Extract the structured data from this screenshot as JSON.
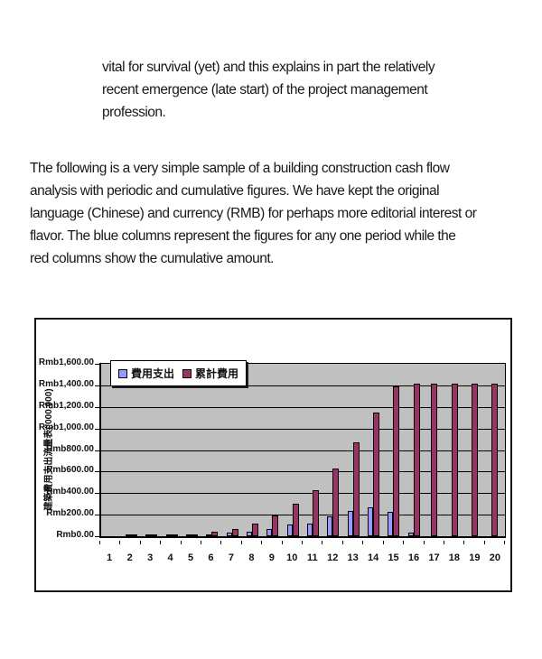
{
  "document": {
    "paragraph_indented": {
      "lines": [
        "vital for survival (yet) and this explains in part the relatively",
        "recent emergence (late start) of the project management",
        "profession."
      ]
    },
    "paragraph_main": {
      "lines": [
        "The following is a very simple sample of a building construction cash flow",
        "analysis with periodic and cumulative figures. We have kept the original",
        "language (Chinese) and currency (RMB) for perhaps more editorial interest or",
        "flavor. The blue columns represent the figures for any one period while the",
        "red columns show the cumulative amount."
      ]
    }
  },
  "chart_data": {
    "type": "bar",
    "title": "",
    "ylabel": "建築費用支出流量表('000,000)",
    "xlabel": "",
    "categories": [
      "1",
      "2",
      "3",
      "4",
      "5",
      "6",
      "7",
      "8",
      "9",
      "10",
      "11",
      "12",
      "13",
      "14",
      "15",
      "16",
      "17",
      "18",
      "19",
      "20"
    ],
    "series": [
      {
        "name": "費用支出",
        "color": "#9999FF",
        "values": [
          0,
          2,
          4,
          6,
          5,
          14,
          30,
          45,
          65,
          110,
          115,
          185,
          235,
          270,
          225,
          30,
          0,
          0,
          0,
          0
        ]
      },
      {
        "name": "累計費用",
        "color": "#993366",
        "values": [
          0,
          2,
          6,
          15,
          20,
          42,
          70,
          115,
          190,
          300,
          430,
          630,
          870,
          1150,
          1390,
          1420,
          1420,
          1420,
          1420,
          1420
        ]
      }
    ],
    "yticks": [
      "Rmb0.00",
      "Rmb200.00",
      "Rmb400.00",
      "Rmb600.00",
      "Rmb800.00",
      "Rmb1,000.00",
      "Rmb1,200.00",
      "Rmb1,400.00",
      "Rmb1,600.00"
    ],
    "ylim": [
      0,
      1600
    ],
    "plot_background": "#C0C0C0",
    "grid": true,
    "legend_position": "top-left-inside"
  }
}
